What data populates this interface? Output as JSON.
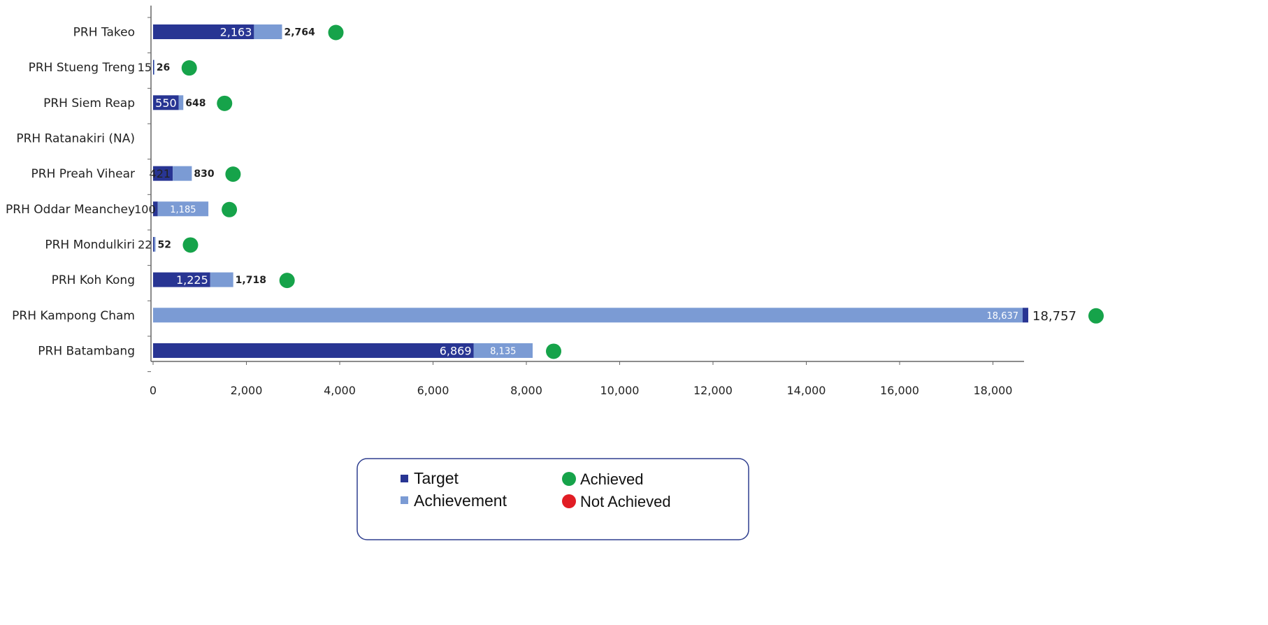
{
  "chart_data": {
    "type": "bar",
    "orientation": "horizontal",
    "categories": [
      "PRH Takeo",
      "PRH Stueng Treng",
      "PRH Siem Reap",
      "PRH Ratanakiri (NA)",
      "PRH Preah Vihear",
      "PRH Oddar Meanchey",
      "PRH Mondulkiri",
      "PRH Koh Kong",
      "PRH Kampong Cham",
      "PRH Batambang"
    ],
    "series": [
      {
        "name": "Target",
        "color": "#283593",
        "values": [
          2163,
          15,
          550,
          null,
          421,
          100,
          22,
          1225,
          18757,
          6869
        ],
        "labels": [
          "2,163",
          "15",
          "550",
          "",
          "421",
          "100",
          "22",
          "1,225",
          "18,757",
          "6,869"
        ]
      },
      {
        "name": "Achievement",
        "color": "#7b9bd4",
        "values": [
          2764,
          26,
          648,
          null,
          830,
          1185,
          52,
          1718,
          18637,
          8135
        ],
        "labels": [
          "2,764",
          "26",
          "648",
          "",
          "830",
          "1,185",
          "52",
          "1,718",
          "18,637",
          "8,135"
        ]
      }
    ],
    "status": [
      "Achieved",
      "Achieved",
      "Achieved",
      "",
      "Achieved",
      "Achieved",
      "Achieved",
      "Achieved",
      "Achieved",
      "Achieved"
    ],
    "x_ticks": [
      0,
      2000,
      4000,
      6000,
      8000,
      10000,
      12000,
      14000,
      16000,
      18000
    ],
    "x_tick_labels": [
      "0",
      "2,000",
      "4,000",
      "6,000",
      "8,000",
      "10,000",
      "12,000",
      "14,000",
      "16,000",
      "18,000"
    ],
    "xlim": [
      0,
      18757
    ],
    "title": "",
    "xlabel": "",
    "ylabel": "",
    "grid": false,
    "legend": {
      "placement": "bottom-center",
      "series_items": [
        "Target",
        "Achievement"
      ],
      "status_items": [
        {
          "label": "Achieved",
          "color": "#16a34a"
        },
        {
          "label": "Not Achieved",
          "color": "#e11d24"
        }
      ]
    }
  }
}
